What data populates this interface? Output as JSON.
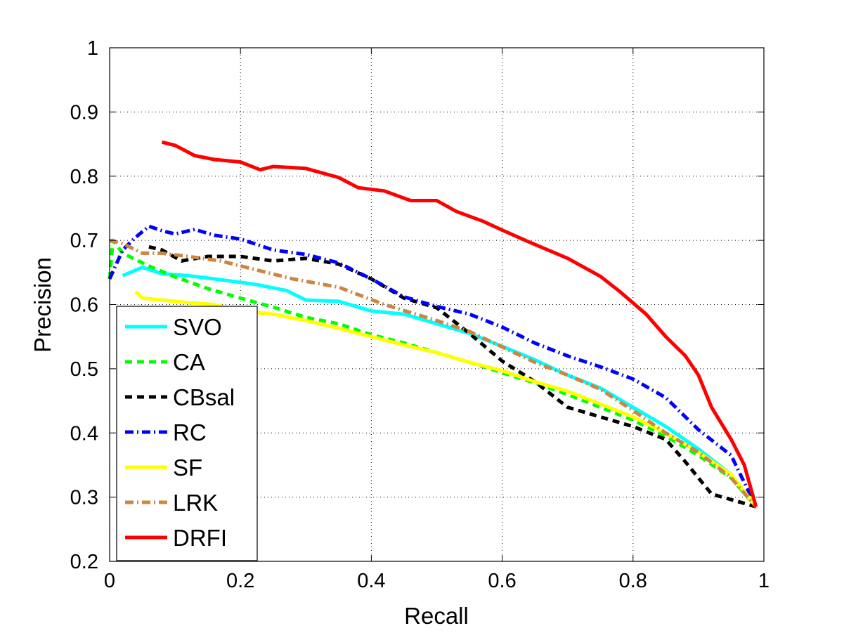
{
  "chart_data": {
    "type": "line",
    "title": "",
    "xlabel": "Recall",
    "ylabel": "Precision",
    "xlim": [
      0,
      1
    ],
    "ylim": [
      0.2,
      1
    ],
    "grid": true,
    "legend_position": "bottom-left",
    "xticks": [
      "0",
      "0.2",
      "0.4",
      "0.6",
      "0.8",
      "1"
    ],
    "xtick_values": [
      0,
      0.2,
      0.4,
      0.6,
      0.8,
      1
    ],
    "yticks": [
      "0.2",
      "0.3",
      "0.4",
      "0.5",
      "0.6",
      "0.7",
      "0.8",
      "0.9",
      "1"
    ],
    "ytick_values": [
      0.2,
      0.3,
      0.4,
      0.5,
      0.6,
      0.7,
      0.8,
      0.9,
      1
    ],
    "series": [
      {
        "name": "SVO",
        "color": "#00FFFF",
        "dash": "",
        "points": [
          [
            0.02,
            0.645
          ],
          [
            0.05,
            0.658
          ],
          [
            0.08,
            0.648
          ],
          [
            0.12,
            0.645
          ],
          [
            0.16,
            0.64
          ],
          [
            0.22,
            0.632
          ],
          [
            0.27,
            0.622
          ],
          [
            0.3,
            0.607
          ],
          [
            0.35,
            0.605
          ],
          [
            0.4,
            0.59
          ],
          [
            0.45,
            0.585
          ],
          [
            0.5,
            0.57
          ],
          [
            0.55,
            0.555
          ],
          [
            0.6,
            0.535
          ],
          [
            0.65,
            0.514
          ],
          [
            0.7,
            0.49
          ],
          [
            0.75,
            0.47
          ],
          [
            0.8,
            0.44
          ],
          [
            0.85,
            0.41
          ],
          [
            0.9,
            0.375
          ],
          [
            0.95,
            0.335
          ],
          [
            0.988,
            0.285
          ]
        ]
      },
      {
        "name": "CA",
        "color": "#00FF00",
        "dash": "10,7",
        "points": [
          [
            0,
            0.64
          ],
          [
            0.005,
            0.7
          ],
          [
            0.02,
            0.68
          ],
          [
            0.06,
            0.66
          ],
          [
            0.1,
            0.643
          ],
          [
            0.15,
            0.625
          ],
          [
            0.2,
            0.61
          ],
          [
            0.25,
            0.596
          ],
          [
            0.3,
            0.58
          ],
          [
            0.35,
            0.57
          ],
          [
            0.4,
            0.553
          ],
          [
            0.45,
            0.54
          ],
          [
            0.5,
            0.525
          ],
          [
            0.55,
            0.51
          ],
          [
            0.6,
            0.494
          ],
          [
            0.65,
            0.478
          ],
          [
            0.7,
            0.46
          ],
          [
            0.75,
            0.44
          ],
          [
            0.8,
            0.42
          ],
          [
            0.85,
            0.395
          ],
          [
            0.9,
            0.365
          ],
          [
            0.95,
            0.33
          ],
          [
            0.988,
            0.285
          ]
        ]
      },
      {
        "name": "CBsal",
        "color": "#000000",
        "dash": "10,7",
        "points": [
          [
            0.06,
            0.69
          ],
          [
            0.08,
            0.685
          ],
          [
            0.11,
            0.668
          ],
          [
            0.15,
            0.675
          ],
          [
            0.2,
            0.675
          ],
          [
            0.25,
            0.668
          ],
          [
            0.3,
            0.672
          ],
          [
            0.35,
            0.663
          ],
          [
            0.4,
            0.64
          ],
          [
            0.45,
            0.61
          ],
          [
            0.5,
            0.595
          ],
          [
            0.55,
            0.555
          ],
          [
            0.6,
            0.512
          ],
          [
            0.65,
            0.48
          ],
          [
            0.7,
            0.44
          ],
          [
            0.75,
            0.425
          ],
          [
            0.8,
            0.41
          ],
          [
            0.85,
            0.39
          ],
          [
            0.88,
            0.355
          ],
          [
            0.92,
            0.305
          ],
          [
            0.988,
            0.285
          ]
        ]
      },
      {
        "name": "RC",
        "color": "#0000FF",
        "dash": "12,5,2,5",
        "points": [
          [
            0,
            0.64
          ],
          [
            0.02,
            0.685
          ],
          [
            0.04,
            0.705
          ],
          [
            0.06,
            0.722
          ],
          [
            0.08,
            0.715
          ],
          [
            0.1,
            0.71
          ],
          [
            0.13,
            0.717
          ],
          [
            0.16,
            0.708
          ],
          [
            0.2,
            0.702
          ],
          [
            0.25,
            0.685
          ],
          [
            0.3,
            0.678
          ],
          [
            0.35,
            0.665
          ],
          [
            0.4,
            0.64
          ],
          [
            0.45,
            0.612
          ],
          [
            0.5,
            0.597
          ],
          [
            0.55,
            0.585
          ],
          [
            0.6,
            0.565
          ],
          [
            0.65,
            0.54
          ],
          [
            0.7,
            0.52
          ],
          [
            0.75,
            0.503
          ],
          [
            0.8,
            0.484
          ],
          [
            0.85,
            0.455
          ],
          [
            0.9,
            0.405
          ],
          [
            0.95,
            0.365
          ],
          [
            0.988,
            0.285
          ]
        ]
      },
      {
        "name": "SF",
        "color": "#FFFF00",
        "dash": "",
        "points": [
          [
            0.04,
            0.62
          ],
          [
            0.05,
            0.61
          ],
          [
            0.08,
            0.607
          ],
          [
            0.12,
            0.603
          ],
          [
            0.16,
            0.6
          ],
          [
            0.2,
            0.59
          ],
          [
            0.25,
            0.585
          ],
          [
            0.3,
            0.575
          ],
          [
            0.35,
            0.563
          ],
          [
            0.4,
            0.55
          ],
          [
            0.45,
            0.537
          ],
          [
            0.5,
            0.525
          ],
          [
            0.55,
            0.51
          ],
          [
            0.6,
            0.497
          ],
          [
            0.65,
            0.48
          ],
          [
            0.7,
            0.465
          ],
          [
            0.75,
            0.445
          ],
          [
            0.8,
            0.425
          ],
          [
            0.85,
            0.4
          ],
          [
            0.9,
            0.37
          ],
          [
            0.95,
            0.335
          ],
          [
            0.988,
            0.285
          ]
        ]
      },
      {
        "name": "LRK",
        "color": "#CD853F",
        "dash": "12,5,2,5",
        "points": [
          [
            0,
            0.7
          ],
          [
            0.02,
            0.695
          ],
          [
            0.05,
            0.68
          ],
          [
            0.08,
            0.68
          ],
          [
            0.12,
            0.675
          ],
          [
            0.17,
            0.668
          ],
          [
            0.22,
            0.655
          ],
          [
            0.28,
            0.64
          ],
          [
            0.35,
            0.627
          ],
          [
            0.42,
            0.6
          ],
          [
            0.5,
            0.575
          ],
          [
            0.55,
            0.558
          ],
          [
            0.6,
            0.534
          ],
          [
            0.65,
            0.51
          ],
          [
            0.7,
            0.49
          ],
          [
            0.75,
            0.468
          ],
          [
            0.8,
            0.435
          ],
          [
            0.85,
            0.4
          ],
          [
            0.9,
            0.37
          ],
          [
            0.95,
            0.33
          ],
          [
            0.988,
            0.285
          ]
        ]
      },
      {
        "name": "DRFI",
        "color": "#FF0000",
        "dash": "",
        "points": [
          [
            0.08,
            0.853
          ],
          [
            0.1,
            0.848
          ],
          [
            0.13,
            0.832
          ],
          [
            0.16,
            0.826
          ],
          [
            0.2,
            0.822
          ],
          [
            0.23,
            0.81
          ],
          [
            0.25,
            0.815
          ],
          [
            0.3,
            0.812
          ],
          [
            0.35,
            0.798
          ],
          [
            0.38,
            0.782
          ],
          [
            0.42,
            0.777
          ],
          [
            0.46,
            0.762
          ],
          [
            0.5,
            0.762
          ],
          [
            0.53,
            0.745
          ],
          [
            0.57,
            0.73
          ],
          [
            0.6,
            0.716
          ],
          [
            0.64,
            0.698
          ],
          [
            0.7,
            0.672
          ],
          [
            0.75,
            0.644
          ],
          [
            0.78,
            0.62
          ],
          [
            0.82,
            0.585
          ],
          [
            0.85,
            0.55
          ],
          [
            0.88,
            0.52
          ],
          [
            0.9,
            0.49
          ],
          [
            0.92,
            0.44
          ],
          [
            0.95,
            0.39
          ],
          [
            0.97,
            0.35
          ],
          [
            0.988,
            0.285
          ]
        ]
      }
    ]
  }
}
